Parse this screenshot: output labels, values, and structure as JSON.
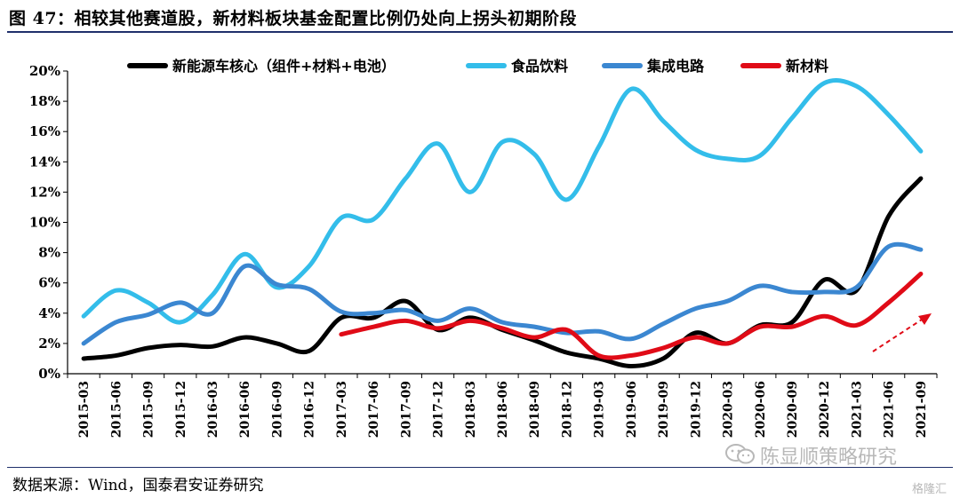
{
  "figure_title": "图 47：相较其他赛道股，新材料板块基金配置比例仍处向上拐头初期阶段",
  "source_note": "数据来源：Wind，国泰君安证券研究",
  "watermarks": [
    "陈显顺策略研究",
    "格隆汇"
  ],
  "icons": {
    "watermark_logo": "wechat-icon",
    "trend_arrow": "dashed-arrow-icon"
  },
  "chart_data": {
    "type": "line",
    "title": "",
    "xlabel": "",
    "ylabel": "",
    "ylim": [
      0,
      0.2
    ],
    "y_ticks": [
      0,
      0.02,
      0.04,
      0.06,
      0.08,
      0.1,
      0.12,
      0.14,
      0.16,
      0.18,
      0.2
    ],
    "y_tick_labels": [
      "0%",
      "2%",
      "4%",
      "6%",
      "8%",
      "10%",
      "12%",
      "14%",
      "16%",
      "18%",
      "20%"
    ],
    "categories": [
      "2015-03",
      "2015-06",
      "2015-09",
      "2015-12",
      "2016-03",
      "2016-06",
      "2016-09",
      "2016-12",
      "2017-03",
      "2017-06",
      "2017-09",
      "2017-12",
      "2018-03",
      "2018-06",
      "2018-09",
      "2018-12",
      "2019-03",
      "2019-06",
      "2019-09",
      "2019-12",
      "2020-03",
      "2020-06",
      "2020-09",
      "2020-12",
      "2021-03",
      "2021-06",
      "2021-09"
    ],
    "grid": false,
    "legend_position": "top",
    "series": [
      {
        "name": "新能源车核心（组件+材料+电池）",
        "color": "#000000",
        "values": [
          0.01,
          0.012,
          0.017,
          0.019,
          0.018,
          0.024,
          0.02,
          0.015,
          0.037,
          0.037,
          0.048,
          0.029,
          0.037,
          0.029,
          0.022,
          0.014,
          0.01,
          0.005,
          0.01,
          0.027,
          0.02,
          0.032,
          0.034,
          0.062,
          0.055,
          0.104,
          0.129
        ]
      },
      {
        "name": "食品饮料",
        "color": "#33bdea",
        "values": [
          0.038,
          0.055,
          0.047,
          0.034,
          0.052,
          0.079,
          0.057,
          0.071,
          0.103,
          0.102,
          0.129,
          0.152,
          0.12,
          0.153,
          0.145,
          0.115,
          0.15,
          0.188,
          0.167,
          0.148,
          0.142,
          0.144,
          0.169,
          0.192,
          0.19,
          0.171,
          0.147
        ]
      },
      {
        "name": "集成电路",
        "color": "#3b87d1",
        "values": [
          0.02,
          0.034,
          0.039,
          0.047,
          0.04,
          0.071,
          0.059,
          0.056,
          0.041,
          0.04,
          0.042,
          0.035,
          0.043,
          0.034,
          0.031,
          0.027,
          0.028,
          0.023,
          0.033,
          0.043,
          0.048,
          0.058,
          0.054,
          0.054,
          0.057,
          0.084,
          0.082
        ]
      },
      {
        "name": "新材料",
        "color": "#e00b17",
        "values": [
          null,
          null,
          null,
          null,
          null,
          null,
          null,
          null,
          0.026,
          0.031,
          0.035,
          0.03,
          0.035,
          0.03,
          0.024,
          0.029,
          0.012,
          0.012,
          0.017,
          0.024,
          0.02,
          0.031,
          0.031,
          0.038,
          0.032,
          0.047,
          0.066
        ]
      }
    ]
  }
}
